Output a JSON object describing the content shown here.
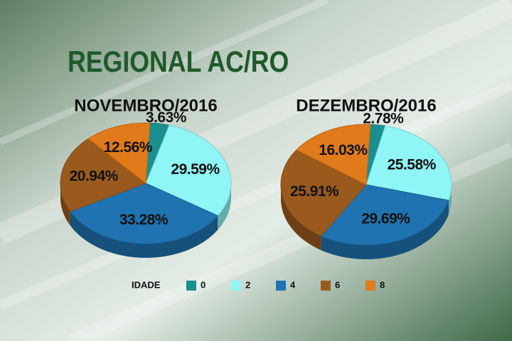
{
  "title": "REGIONAL AC/RO",
  "legend": {
    "title": "IDADE",
    "labels": [
      "0",
      "2",
      "4",
      "6",
      "8"
    ],
    "colors": [
      "#1a8f8f",
      "#8ff5f5",
      "#1f73b0",
      "#9a5a1e",
      "#e07a1a"
    ]
  },
  "chart_data": [
    {
      "type": "pie",
      "title": "NOVEMBRO/2016",
      "values": [
        3.63,
        29.59,
        33.28,
        20.94,
        12.56
      ],
      "value_labels": [
        "3.63%",
        "29.59%",
        "33.28%",
        "20.94%",
        "12.56%"
      ]
    },
    {
      "type": "pie",
      "title": "DEZEMBRO/2016",
      "values": [
        2.78,
        25.58,
        29.69,
        25.91,
        16.03
      ],
      "value_labels": [
        "2.78%",
        "25.58%",
        "29.69%",
        "25.91%",
        "16.03%"
      ]
    }
  ]
}
